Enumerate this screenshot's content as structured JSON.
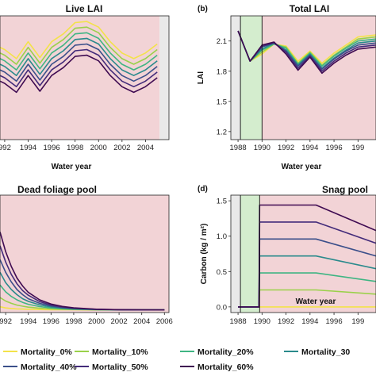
{
  "colors": {
    "treatment_bg": "#f2d3d6",
    "spinup_bg": "#d4edce",
    "pre_bg": "#e9e9e9",
    "series": [
      "#f3e24a",
      "#9ad14a",
      "#3fb583",
      "#2a8a8c",
      "#3b4f8a",
      "#432b7a",
      "#3f0b52"
    ]
  },
  "chart_data": [
    {
      "id": "a",
      "panel_label": "",
      "title": "Live LAI",
      "type": "line",
      "xlabel": "Water year",
      "ylabel": "",
      "xlim": [
        1991.6,
        2006.0
      ],
      "ylim": [
        1.2,
        2.3
      ],
      "x_ticks": [
        "992",
        "1994",
        "1996",
        "1998",
        "2000",
        "2002",
        "2004"
      ],
      "x_tick_values": [
        1992,
        1994,
        1996,
        1998,
        2000,
        2002,
        2004
      ],
      "y_ticks": [],
      "shade": [
        {
          "kind": "treatment",
          "from": 1991.6,
          "to": 2005.2
        },
        {
          "kind": "pre",
          "from": 2005.2,
          "to": 2006.0
        }
      ],
      "x": [
        1991.6,
        1992,
        1993,
        1994,
        1995,
        1996,
        1997,
        1998,
        1999,
        2000,
        2001,
        2002,
        2003,
        2004,
        2005
      ],
      "series": [
        {
          "name": "Mortality_0%",
          "values": [
            2.02,
            2.0,
            1.92,
            2.07,
            1.93,
            2.07,
            2.14,
            2.24,
            2.25,
            2.2,
            2.07,
            1.97,
            1.92,
            1.97,
            2.05
          ]
        },
        {
          "name": "Mortality_10%",
          "values": [
            1.97,
            1.95,
            1.87,
            2.02,
            1.88,
            2.02,
            2.09,
            2.19,
            2.2,
            2.15,
            2.02,
            1.92,
            1.87,
            1.92,
            2.0
          ]
        },
        {
          "name": "Mortality_20%",
          "values": [
            1.92,
            1.9,
            1.82,
            1.97,
            1.83,
            1.97,
            2.04,
            2.14,
            2.15,
            2.1,
            1.97,
            1.87,
            1.82,
            1.87,
            1.95
          ]
        },
        {
          "name": "Mortality_30%",
          "values": [
            1.87,
            1.85,
            1.77,
            1.92,
            1.78,
            1.92,
            1.99,
            2.09,
            2.1,
            2.05,
            1.92,
            1.82,
            1.77,
            1.82,
            1.9
          ]
        },
        {
          "name": "Mortality_40%",
          "values": [
            1.82,
            1.8,
            1.72,
            1.87,
            1.73,
            1.87,
            1.94,
            2.04,
            2.05,
            2.0,
            1.87,
            1.77,
            1.72,
            1.77,
            1.85
          ]
        },
        {
          "name": "Mortality_50%",
          "values": [
            1.77,
            1.75,
            1.67,
            1.82,
            1.68,
            1.82,
            1.89,
            1.99,
            2.0,
            1.95,
            1.82,
            1.72,
            1.67,
            1.72,
            1.8
          ]
        },
        {
          "name": "Mortality_60%",
          "values": [
            1.72,
            1.7,
            1.62,
            1.77,
            1.63,
            1.77,
            1.84,
            1.94,
            1.95,
            1.9,
            1.77,
            1.67,
            1.62,
            1.67,
            1.75
          ]
        }
      ]
    },
    {
      "id": "b",
      "panel_label": "(b)",
      "title": "Total LAI",
      "type": "line",
      "xlabel": "Water year",
      "ylabel": "LAI",
      "xlim": [
        1987.4,
        1999.5
      ],
      "ylim": [
        1.12,
        2.35
      ],
      "x_ticks": [
        "1988",
        "1990",
        "1992",
        "1994",
        "1996",
        "199"
      ],
      "x_tick_values": [
        1988,
        1990,
        1992,
        1994,
        1996,
        1998
      ],
      "y_ticks": [
        "1.2",
        "1.5",
        "1.8",
        "2.1"
      ],
      "y_tick_values": [
        1.2,
        1.5,
        1.8,
        2.1
      ],
      "shade": [
        {
          "kind": "pre",
          "from": 1987.4,
          "to": 1988.2
        },
        {
          "kind": "spinup",
          "from": 1988.2,
          "to": 1990.0
        },
        {
          "kind": "treatment",
          "from": 1990.0,
          "to": 1999.5
        }
      ],
      "x": [
        1988,
        1989,
        1990,
        1991,
        1992,
        1993,
        1994,
        1995,
        1996,
        1997,
        1998,
        1999.5
      ],
      "series": [
        {
          "name": "Mortality_0%",
          "values": [
            2.2,
            1.9,
            1.97,
            2.07,
            2.05,
            1.9,
            2.0,
            1.88,
            1.98,
            2.06,
            2.14,
            2.16
          ]
        },
        {
          "name": "Mortality_10%",
          "values": [
            2.2,
            1.9,
            1.99,
            2.07,
            2.04,
            1.88,
            1.99,
            1.86,
            1.96,
            2.04,
            2.12,
            2.14
          ]
        },
        {
          "name": "Mortality_20%",
          "values": [
            2.2,
            1.9,
            2.01,
            2.07,
            2.03,
            1.87,
            1.98,
            1.85,
            1.95,
            2.03,
            2.1,
            2.12
          ]
        },
        {
          "name": "Mortality_30%",
          "values": [
            2.2,
            1.9,
            2.02,
            2.08,
            2.01,
            1.86,
            1.97,
            1.83,
            1.93,
            2.01,
            2.08,
            2.1
          ]
        },
        {
          "name": "Mortality_40%",
          "values": [
            2.2,
            1.9,
            2.04,
            2.08,
            2.0,
            1.85,
            1.96,
            1.82,
            1.92,
            2.0,
            2.06,
            2.08
          ]
        },
        {
          "name": "Mortality_50%",
          "values": [
            2.2,
            1.9,
            2.05,
            2.08,
            1.99,
            1.83,
            1.95,
            1.8,
            1.9,
            1.98,
            2.04,
            2.06
          ]
        },
        {
          "name": "Mortality_60%",
          "values": [
            2.2,
            1.9,
            2.06,
            2.09,
            1.97,
            1.81,
            1.94,
            1.78,
            1.88,
            1.96,
            2.02,
            2.04
          ]
        }
      ]
    },
    {
      "id": "c",
      "panel_label": "",
      "title": "Dead foliage pool",
      "type": "line",
      "xlabel": "",
      "ylabel": "",
      "xlim": [
        1991.5,
        2006.4
      ],
      "ylim": [
        -0.02,
        1.0
      ],
      "x_ticks": [
        "992",
        "1994",
        "1996",
        "1998",
        "2000",
        "2002",
        "2004",
        "2006"
      ],
      "x_tick_values": [
        1992,
        1994,
        1996,
        1998,
        2000,
        2002,
        2004,
        2006
      ],
      "y_ticks": [],
      "shade": [
        {
          "kind": "treatment",
          "from": 1991.5,
          "to": 2006.4
        }
      ],
      "x": [
        1991.5,
        1992,
        1992.5,
        1993,
        1993.5,
        1994,
        1995,
        1996,
        1997,
        1998,
        2000,
        2002,
        2004,
        2006
      ],
      "series": [
        {
          "name": "Mortality_0%",
          "values": [
            0.03,
            0.02,
            0.015,
            0.012,
            0.01,
            0.008,
            0.006,
            0.005,
            0.004,
            0.004,
            0.003,
            0.003,
            0.003,
            0.003
          ]
        },
        {
          "name": "Mortality_10%",
          "values": [
            0.11,
            0.08,
            0.06,
            0.045,
            0.035,
            0.027,
            0.017,
            0.011,
            0.008,
            0.006,
            0.004,
            0.003,
            0.003,
            0.003
          ]
        },
        {
          "name": "Mortality_20%",
          "values": [
            0.22,
            0.16,
            0.12,
            0.09,
            0.068,
            0.052,
            0.032,
            0.02,
            0.013,
            0.009,
            0.005,
            0.004,
            0.003,
            0.003
          ]
        },
        {
          "name": "Mortality_30%",
          "values": [
            0.33,
            0.24,
            0.18,
            0.135,
            0.1,
            0.077,
            0.046,
            0.028,
            0.018,
            0.012,
            0.006,
            0.004,
            0.003,
            0.003
          ]
        },
        {
          "name": "Mortality_40%",
          "values": [
            0.44,
            0.33,
            0.245,
            0.18,
            0.135,
            0.1,
            0.06,
            0.037,
            0.023,
            0.015,
            0.007,
            0.004,
            0.003,
            0.003
          ]
        },
        {
          "name": "Mortality_50%",
          "values": [
            0.56,
            0.42,
            0.31,
            0.23,
            0.17,
            0.13,
            0.075,
            0.045,
            0.028,
            0.018,
            0.008,
            0.005,
            0.003,
            0.003
          ]
        },
        {
          "name": "Mortality_60%",
          "values": [
            0.68,
            0.51,
            0.38,
            0.28,
            0.21,
            0.155,
            0.09,
            0.054,
            0.033,
            0.021,
            0.009,
            0.005,
            0.004,
            0.003
          ]
        }
      ]
    },
    {
      "id": "d",
      "panel_label": "(d)",
      "title": "Snag pool",
      "type": "line",
      "xlabel": "Water year",
      "ylabel": "Carbon (kg / m²)",
      "xlim": [
        1987.4,
        1999.5
      ],
      "ylim": [
        -0.08,
        1.58
      ],
      "x_ticks": [
        "1988",
        "1990",
        "1992",
        "1994",
        "1996",
        "199"
      ],
      "x_tick_values": [
        1988,
        1990,
        1992,
        1994,
        1996,
        1998
      ],
      "y_ticks": [
        "0.0",
        "0.5",
        "1.0",
        "1.5"
      ],
      "y_tick_values": [
        0.0,
        0.5,
        1.0,
        1.5
      ],
      "shade": [
        {
          "kind": "pre",
          "from": 1987.4,
          "to": 1988.2
        },
        {
          "kind": "spinup",
          "from": 1988.2,
          "to": 1989.8
        },
        {
          "kind": "treatment",
          "from": 1989.8,
          "to": 1999.5
        }
      ],
      "x": [
        1988,
        1989.75,
        1989.8,
        1994.5,
        1999.5
      ],
      "series": [
        {
          "name": "Mortality_0%",
          "values": [
            0.0,
            0.0,
            0.0,
            0.0,
            0.0
          ]
        },
        {
          "name": "Mortality_10%",
          "values": [
            0.0,
            0.0,
            0.24,
            0.24,
            0.18
          ]
        },
        {
          "name": "Mortality_20%",
          "values": [
            0.0,
            0.0,
            0.48,
            0.48,
            0.36
          ]
        },
        {
          "name": "Mortality_30%",
          "values": [
            0.0,
            0.0,
            0.72,
            0.72,
            0.54
          ]
        },
        {
          "name": "Mortality_40%",
          "values": [
            0.0,
            0.0,
            0.96,
            0.96,
            0.72
          ]
        },
        {
          "name": "Mortality_50%",
          "values": [
            0.0,
            0.0,
            1.2,
            1.2,
            0.9
          ]
        },
        {
          "name": "Mortality_60%",
          "values": [
            0.0,
            0.0,
            1.44,
            1.44,
            1.08
          ]
        }
      ]
    }
  ],
  "legend": {
    "items": [
      "Mortality_0%",
      "Mortality_10%",
      "Mortality_20%",
      "Mortality_30",
      "Mortality_40%",
      "Mortality_50%",
      "Mortality_60%"
    ]
  }
}
